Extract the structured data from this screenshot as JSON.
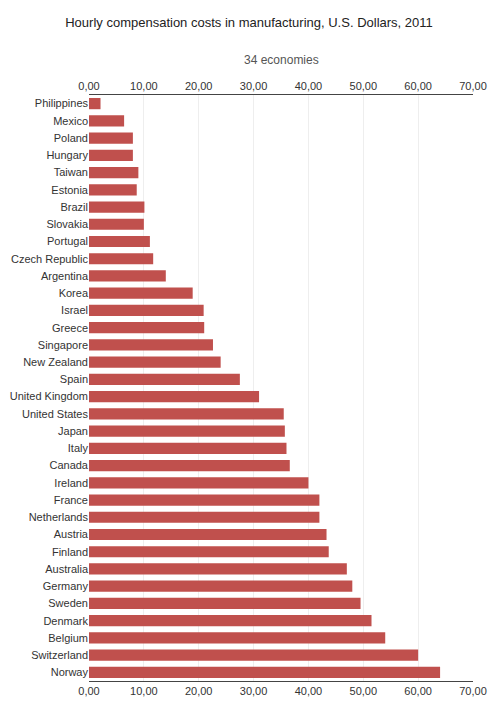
{
  "chart_data": {
    "type": "bar",
    "orientation": "horizontal",
    "title": "Hourly compensation costs in manufacturing, U.S. Dollars, 2011",
    "subtitle": "34 economies",
    "categories": [
      "Philippines",
      "Mexico",
      "Poland",
      "Hungary",
      "Taiwan",
      "Estonia",
      "Brazil",
      "Slovakia",
      "Portugal",
      "Czech Republic",
      "Argentina",
      "Korea",
      "Israel",
      "Greece",
      "Singapore",
      "New Zealand",
      "Spain",
      "United Kingdom",
      "United States",
      "Japan",
      "Italy",
      "Canada",
      "Ireland",
      "France",
      "Netherlands",
      "Austria",
      "Finland",
      "Australia",
      "Germany",
      "Sweden",
      "Denmark",
      "Belgium",
      "Switzerland",
      "Norway"
    ],
    "values": [
      2.1,
      6.4,
      8.0,
      8.0,
      9.0,
      8.7,
      10.1,
      10.0,
      11.1,
      11.7,
      14.0,
      18.9,
      20.9,
      21.0,
      22.6,
      24.0,
      27.5,
      31.0,
      35.5,
      35.7,
      36.0,
      36.6,
      40.0,
      42.0,
      42.0,
      43.3,
      43.7,
      47.0,
      48.0,
      49.5,
      51.5,
      54.0,
      60.0,
      64.0
    ],
    "color": "#C0504D",
    "xlim": [
      0,
      70
    ],
    "xticks": [
      {
        "value": 0,
        "label": "0,00"
      },
      {
        "value": 10,
        "label": "10,00"
      },
      {
        "value": 20,
        "label": "20,00"
      },
      {
        "value": 30,
        "label": "30,00"
      },
      {
        "value": 40,
        "label": "40,00"
      },
      {
        "value": 50,
        "label": "50,00"
      },
      {
        "value": 60,
        "label": "60,00"
      },
      {
        "value": 70,
        "label": "70,00"
      }
    ],
    "grid": true
  }
}
